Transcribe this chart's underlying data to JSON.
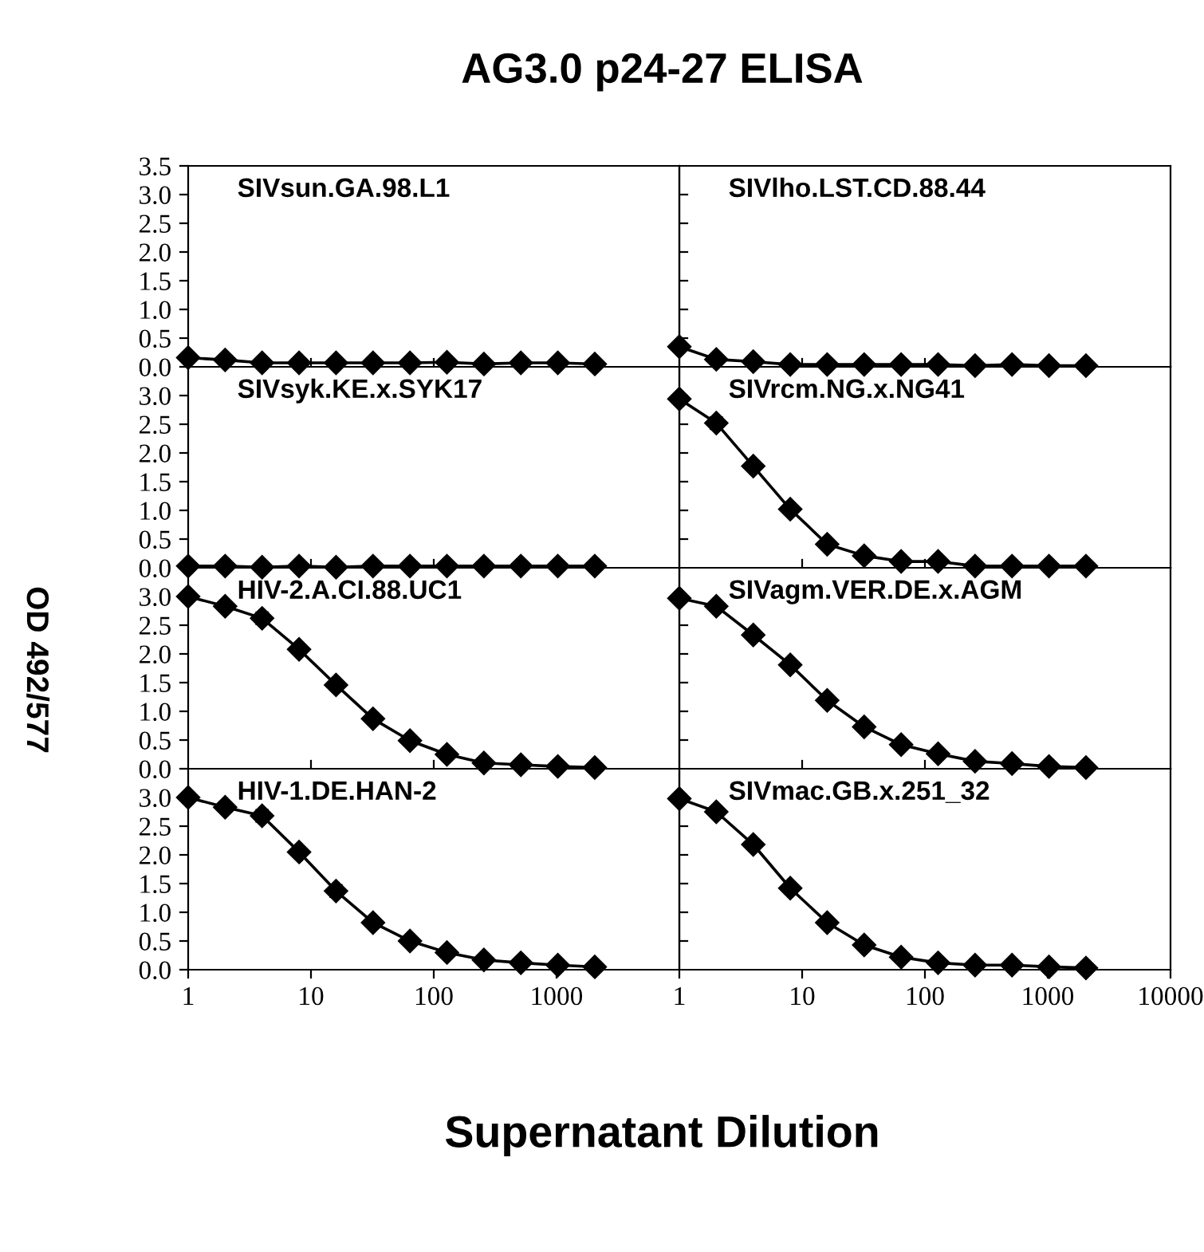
{
  "chart_data": [
    {
      "type": "line",
      "title": "AG3.0 p24-27 ELISA",
      "annotations": [
        "SIVsun.GA.98.L1"
      ],
      "log": "x",
      "marker": "diamond",
      "tick_labels": "y",
      "xlim": [
        1,
        10000
      ],
      "ylim": [
        0,
        3.5
      ],
      "xticks": [
        {
          "value": 10,
          "label": null
        },
        {
          "value": 100,
          "label": null
        },
        {
          "value": 1000,
          "label": null
        }
      ],
      "yticks": [
        {
          "value": 0,
          "label": "0.0"
        },
        {
          "value": 0.5,
          "label": "0.5"
        },
        {
          "value": 1,
          "label": "1.0"
        },
        {
          "value": 1.5,
          "label": "1.5"
        },
        {
          "value": 2,
          "label": "2.0"
        },
        {
          "value": 2.5,
          "label": "2.5"
        },
        {
          "value": 3,
          "label": "3.0"
        },
        {
          "value": 3.5,
          "label": "3.5"
        }
      ],
      "x": [
        1,
        2,
        4,
        8,
        16,
        32,
        64,
        128,
        256,
        512,
        1024,
        2048
      ],
      "series": [
        {
          "color": "#000000",
          "values": [
            0.16,
            0.12,
            0.07,
            0.07,
            0.07,
            0.07,
            0.07,
            0.08,
            0.05,
            0.07,
            0.07,
            0.05
          ]
        }
      ]
    },
    {
      "type": "line",
      "annotations": [
        "SIVlho.LST.CD.88.44"
      ],
      "log": "x",
      "marker": "diamond",
      "tick_labels": false,
      "xlim": [
        1,
        10000
      ],
      "ylim": [
        0,
        3.5
      ],
      "xticks": [
        {
          "value": 10,
          "label": null
        },
        {
          "value": 100,
          "label": null
        },
        {
          "value": 1000,
          "label": null
        }
      ],
      "yticks": [
        0.5,
        1,
        1.5,
        2,
        2.5,
        3
      ],
      "x": [
        1,
        2,
        4,
        8,
        16,
        32,
        64,
        128,
        256,
        512,
        1024,
        2048
      ],
      "series": [
        {
          "color": "#000000",
          "values": [
            0.35,
            0.13,
            0.09,
            0.04,
            0.04,
            0.04,
            0.04,
            0.04,
            0.02,
            0.04,
            0.02,
            0.02
          ]
        }
      ]
    },
    {
      "type": "line",
      "annotations": [
        "SIVsyk.KE.x.SYK17"
      ],
      "log": "x",
      "marker": "diamond",
      "tick_labels": "y",
      "xlim": [
        1,
        10000
      ],
      "ylim": [
        0,
        3.5
      ],
      "xticks": [
        {
          "value": 10,
          "label": null
        },
        {
          "value": 100,
          "label": null
        },
        {
          "value": 1000,
          "label": null
        }
      ],
      "yticks": [
        {
          "value": 0,
          "label": "0.0"
        },
        {
          "value": 0.5,
          "label": "0.5"
        },
        {
          "value": 1,
          "label": "1.0"
        },
        {
          "value": 1.5,
          "label": "1.5"
        },
        {
          "value": 2,
          "label": "2.0"
        },
        {
          "value": 2.5,
          "label": "2.5"
        },
        {
          "value": 3,
          "label": "3.0"
        }
      ],
      "x": [
        1,
        2,
        4,
        8,
        16,
        32,
        64,
        128,
        256,
        512,
        1024,
        2048
      ],
      "series": [
        {
          "color": "#000000",
          "values": [
            0.03,
            0.03,
            0.01,
            0.03,
            0.01,
            0.03,
            0.03,
            0.03,
            0.03,
            0.03,
            0.03,
            0.03
          ]
        }
      ]
    },
    {
      "type": "line",
      "annotations": [
        "SIVrcm.NG.x.NG41"
      ],
      "log": "x",
      "marker": "diamond",
      "tick_labels": false,
      "xlim": [
        1,
        10000
      ],
      "ylim": [
        0,
        3.5
      ],
      "xticks": [
        {
          "value": 10,
          "label": null
        },
        {
          "value": 100,
          "label": null
        },
        {
          "value": 1000,
          "label": null
        }
      ],
      "yticks": [
        0.5,
        1,
        1.5,
        2,
        2.5,
        3
      ],
      "x": [
        1,
        2,
        4,
        8,
        16,
        32,
        64,
        128,
        256,
        512,
        1024,
        2048
      ],
      "series": [
        {
          "color": "#000000",
          "values": [
            2.94,
            2.52,
            1.77,
            1.02,
            0.41,
            0.21,
            0.11,
            0.11,
            0.03,
            0.03,
            0.03,
            0.03
          ],
          "errors": [
            null,
            0.1,
            0.08,
            null,
            0.07,
            0.07,
            null,
            null,
            null,
            null,
            null,
            null
          ]
        }
      ]
    },
    {
      "type": "line",
      "ylabel": "OD 492/577",
      "annotations": [
        "HIV-2.A.CI.88.UC1"
      ],
      "log": "x",
      "marker": "diamond",
      "tick_labels": "y",
      "xlim": [
        1,
        10000
      ],
      "ylim": [
        0,
        3.5
      ],
      "xticks": [
        {
          "value": 10,
          "label": null
        },
        {
          "value": 100,
          "label": null
        },
        {
          "value": 1000,
          "label": null
        }
      ],
      "yticks": [
        {
          "value": 0,
          "label": "0.0"
        },
        {
          "value": 0.5,
          "label": "0.5"
        },
        {
          "value": 1,
          "label": "1.0"
        },
        {
          "value": 1.5,
          "label": "1.5"
        },
        {
          "value": 2,
          "label": "2.0"
        },
        {
          "value": 2.5,
          "label": "2.5"
        },
        {
          "value": 3,
          "label": "3.0"
        }
      ],
      "x": [
        1,
        2,
        4,
        8,
        16,
        32,
        64,
        128,
        256,
        512,
        1024,
        2048
      ],
      "series": [
        {
          "color": "#000000",
          "values": [
            3.0,
            2.83,
            2.62,
            2.08,
            1.46,
            0.87,
            0.49,
            0.25,
            0.1,
            0.07,
            0.04,
            0.02
          ],
          "errors": [
            null,
            null,
            0.1,
            null,
            null,
            null,
            null,
            null,
            null,
            null,
            null,
            null
          ]
        }
      ]
    },
    {
      "type": "line",
      "annotations": [
        "SIVagm.VER.DE.x.AGM"
      ],
      "log": "x",
      "marker": "diamond",
      "tick_labels": false,
      "xlim": [
        1,
        10000
      ],
      "ylim": [
        0,
        3.5
      ],
      "xticks": [
        {
          "value": 10,
          "label": null
        },
        {
          "value": 100,
          "label": null
        },
        {
          "value": 1000,
          "label": null
        }
      ],
      "yticks": [
        0.5,
        1,
        1.5,
        2,
        2.5,
        3
      ],
      "x": [
        1,
        2,
        4,
        8,
        16,
        32,
        64,
        128,
        256,
        512,
        1024,
        2048
      ],
      "series": [
        {
          "color": "#000000",
          "values": [
            2.97,
            2.83,
            2.33,
            1.81,
            1.19,
            0.73,
            0.42,
            0.26,
            0.13,
            0.09,
            0.04,
            0.02
          ]
        }
      ]
    },
    {
      "type": "line",
      "xlabel": "Supernatant Dilution",
      "annotations": [
        "HIV-1.DE.HAN-2"
      ],
      "log": "x",
      "marker": "diamond",
      "xlim": [
        1,
        10000
      ],
      "ylim": [
        0,
        3.5
      ],
      "xticks": [
        1,
        10,
        100,
        1000
      ],
      "yticks": [
        {
          "value": 0,
          "label": "0.0"
        },
        {
          "value": 0.5,
          "label": "0.5"
        },
        {
          "value": 1,
          "label": "1.0"
        },
        {
          "value": 1.5,
          "label": "1.5"
        },
        {
          "value": 2,
          "label": "2.0"
        },
        {
          "value": 2.5,
          "label": "2.5"
        },
        {
          "value": 3,
          "label": "3.0"
        }
      ],
      "x": [
        1,
        2,
        4,
        8,
        16,
        32,
        64,
        128,
        256,
        512,
        1024,
        2048
      ],
      "series": [
        {
          "color": "#000000",
          "values": [
            3.0,
            2.83,
            2.68,
            2.05,
            1.37,
            0.82,
            0.5,
            0.3,
            0.17,
            0.12,
            0.08,
            0.05
          ],
          "errors": [
            null,
            null,
            0.1,
            0.06,
            0.1,
            null,
            null,
            null,
            null,
            null,
            null,
            null
          ]
        }
      ]
    },
    {
      "type": "line",
      "annotations": [
        "SIVmac.GB.x.251_32"
      ],
      "log": "x",
      "marker": "diamond",
      "tick_labels": "x",
      "xlim": [
        1,
        10000
      ],
      "ylim": [
        0,
        3.5
      ],
      "xticks": [
        1,
        10,
        100,
        1000,
        10000
      ],
      "yticks": [
        0.5,
        1,
        1.5,
        2,
        2.5,
        3
      ],
      "x": [
        1,
        2,
        4,
        8,
        16,
        32,
        64,
        128,
        256,
        512,
        1024,
        2048
      ],
      "series": [
        {
          "color": "#000000",
          "values": [
            2.98,
            2.75,
            2.18,
            1.42,
            0.82,
            0.43,
            0.22,
            0.12,
            0.08,
            0.08,
            0.05,
            0.03
          ],
          "errors": [
            null,
            0.08,
            null,
            null,
            null,
            null,
            null,
            null,
            null,
            null,
            null,
            null
          ]
        }
      ]
    }
  ]
}
